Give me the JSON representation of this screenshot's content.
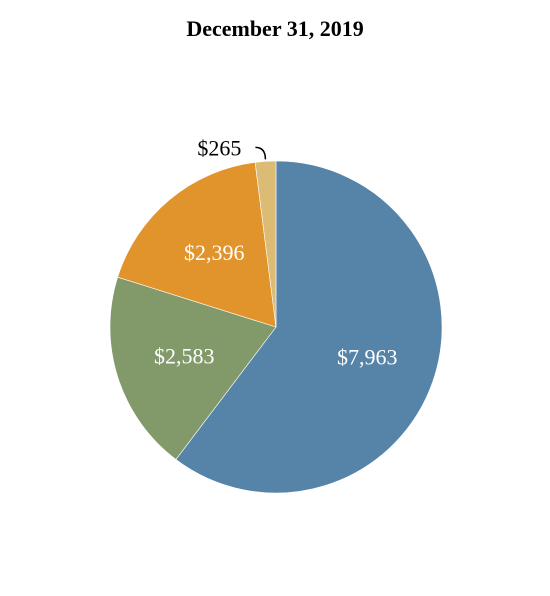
{
  "chart_data": {
    "type": "pie",
    "title": "December 31, 2019",
    "categories": [
      "",
      "",
      "",
      ""
    ],
    "values": [
      7963,
      2583,
      2396,
      265
    ],
    "value_labels": [
      "$7,963",
      "$2,583",
      "$2,396",
      "$265"
    ],
    "colors": [
      "#5683a8",
      "#82996a",
      "#e2942c",
      "#dcbb75"
    ],
    "label_colors": [
      "#ffffff",
      "#ffffff",
      "#ffffff",
      "#000000"
    ],
    "start_angle_deg": 0,
    "direction": "clockwise",
    "legend": "none"
  }
}
